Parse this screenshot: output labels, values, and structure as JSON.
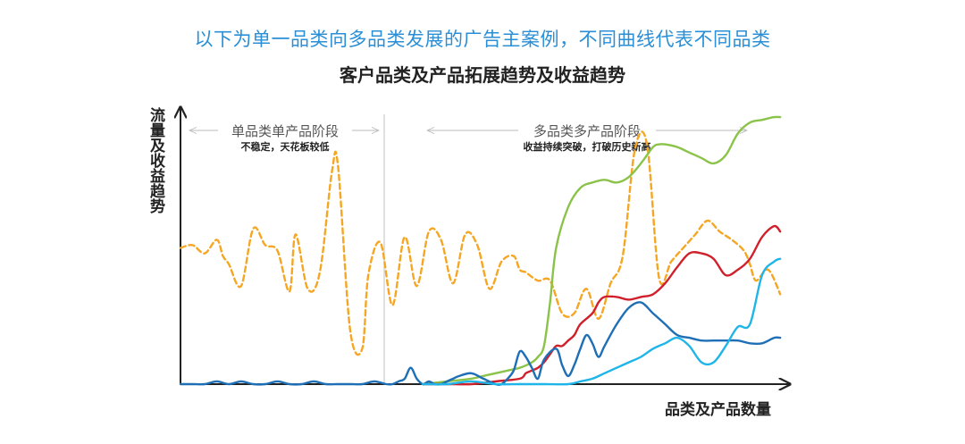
{
  "header": {
    "subtitle": "以下为单一品类向多品类发展的广告主案例，不同曲线代表不同品类",
    "title": "客户品类及产品拓展趋势及收益趋势"
  },
  "chart_data": {
    "type": "line",
    "title": "客户品类及产品拓展趋势及收益趋势",
    "xlabel": "品类及产品数量",
    "ylabel": "流量及收益趋势",
    "xlim": [
      0,
      100
    ],
    "ylim": [
      0,
      100
    ],
    "grid": false,
    "stages": [
      {
        "label": "单品类单产品阶段",
        "note": "不稳定，天花板较低",
        "x_range": [
          0,
          34
        ]
      },
      {
        "label": "多品类多产品阶段",
        "note": "收益持续突破，打破历史新高",
        "x_range": [
          34,
          100
        ]
      }
    ],
    "divider_x": 34,
    "series": [
      {
        "color": "#f5a623",
        "style": "dashed",
        "x": [
          0,
          2,
          4,
          6,
          7,
          8,
          10,
          12,
          14,
          16,
          18,
          19,
          21,
          23,
          25,
          26,
          28,
          30,
          31,
          33,
          35,
          37,
          39,
          41,
          43,
          45,
          47,
          49,
          51,
          53,
          55,
          56,
          57,
          59,
          61,
          63,
          65,
          67,
          69,
          71,
          73,
          75,
          77,
          79,
          81,
          83,
          85,
          87,
          89,
          91,
          93,
          94,
          95,
          97,
          99
        ],
        "y": [
          50,
          51,
          48,
          53,
          47,
          44,
          36,
          57,
          51,
          49,
          34,
          55,
          35,
          41,
          78,
          80,
          20,
          13,
          40,
          52,
          29,
          54,
          36,
          56,
          53,
          37,
          55,
          51,
          35,
          45,
          47,
          42,
          41,
          38,
          38,
          26,
          26,
          35,
          24,
          37,
          47,
          86,
          88,
          39,
          45,
          50,
          55,
          60,
          56,
          53,
          49,
          44,
          38,
          42,
          33
        ]
      },
      {
        "color": "#8bc34a",
        "style": "solid",
        "x": [
          40,
          44,
          48,
          50,
          52,
          54,
          56,
          58,
          59,
          60,
          61,
          62,
          64,
          66,
          68,
          70,
          72,
          74,
          76,
          78,
          79,
          80,
          82,
          84,
          86,
          88,
          90,
          92,
          94,
          96,
          98,
          99
        ],
        "y": [
          0,
          1,
          2,
          3,
          4,
          5,
          6,
          8,
          10,
          14,
          30,
          50,
          65,
          72,
          74,
          75,
          74,
          76,
          81,
          87,
          88,
          88,
          87,
          85,
          83,
          81,
          84,
          92,
          96,
          97,
          98,
          98
        ]
      },
      {
        "color": "#d0202b",
        "style": "solid",
        "x": [
          40,
          44,
          48,
          52,
          56,
          57,
          58,
          59,
          60,
          61,
          62,
          63,
          64,
          65,
          66,
          68,
          69,
          70,
          72,
          74,
          76,
          78,
          80,
          82,
          84,
          86,
          88,
          90,
          92,
          94,
          96,
          98,
          99
        ],
        "y": [
          0,
          0,
          0,
          1,
          2,
          4,
          5,
          6,
          8,
          11,
          14,
          14,
          16,
          18,
          22,
          26,
          30,
          32,
          32,
          31,
          32,
          33,
          37,
          43,
          48,
          48,
          46,
          40,
          42,
          46,
          54,
          58,
          56
        ]
      },
      {
        "color": "#1e6fb5",
        "style": "solid",
        "x": [
          0,
          2,
          4,
          6,
          8,
          10,
          12,
          14,
          16,
          18,
          20,
          22,
          24,
          26,
          28,
          30,
          32,
          34,
          35,
          36,
          37,
          38,
          39,
          40,
          41,
          42,
          43,
          44,
          45,
          46,
          48,
          50,
          52,
          53,
          54,
          55,
          56,
          57,
          58,
          59,
          60,
          62,
          63,
          64,
          65,
          66,
          67,
          68,
          69,
          70,
          72,
          74,
          76,
          78,
          80,
          82,
          84,
          86,
          88,
          90,
          92,
          94,
          96,
          98,
          99
        ],
        "y": [
          0,
          0,
          0,
          1,
          0,
          1,
          0,
          0,
          1,
          0,
          0,
          1,
          0,
          0,
          0,
          0,
          1,
          0,
          0,
          1,
          2,
          6,
          2,
          0,
          1,
          0,
          0,
          1,
          2,
          3,
          4,
          2,
          0,
          0,
          2,
          5,
          12,
          10,
          6,
          2,
          9,
          13,
          7,
          3,
          7,
          13,
          18,
          15,
          10,
          14,
          22,
          28,
          30,
          26,
          22,
          18,
          17,
          16,
          16,
          16,
          16,
          15,
          15,
          17,
          17
        ]
      },
      {
        "color": "#1fb5e8",
        "style": "solid",
        "x": [
          40,
          44,
          48,
          52,
          56,
          60,
          64,
          66,
          68,
          70,
          72,
          74,
          76,
          78,
          80,
          82,
          84,
          86,
          88,
          90,
          92,
          94,
          96,
          98,
          99
        ],
        "y": [
          0,
          0,
          1,
          0,
          0,
          0,
          0,
          1,
          2,
          4,
          6,
          8,
          10,
          13,
          15,
          17,
          14,
          8,
          8,
          14,
          21,
          22,
          40,
          45,
          46
        ]
      }
    ]
  }
}
